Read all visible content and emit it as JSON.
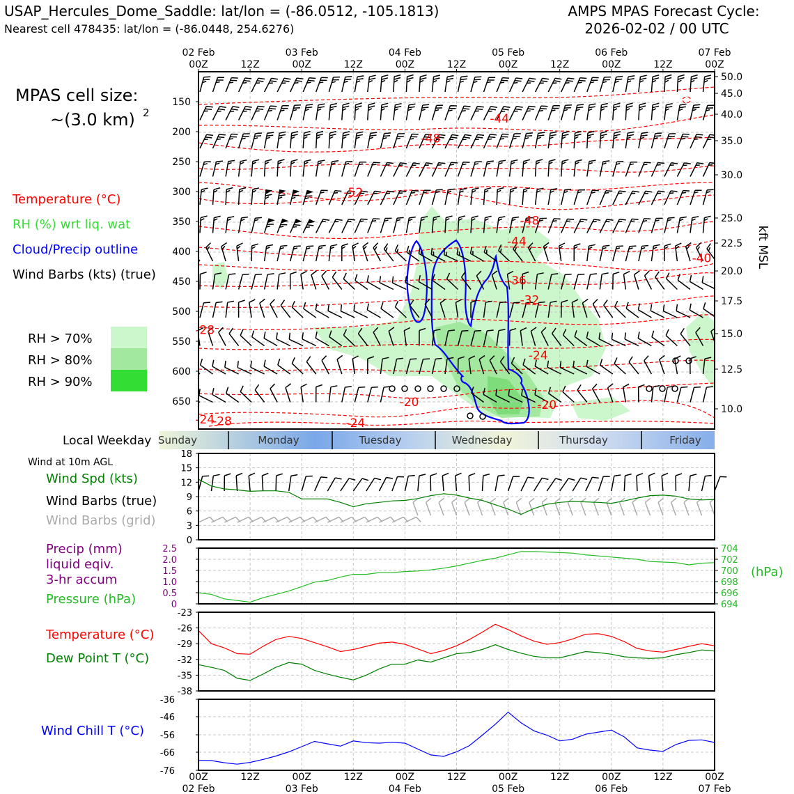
{
  "header": {
    "title_left": "USAP_Hercules_Dome_Saddle: lat/lon = (-86.0512, -105.1813)",
    "subtitle_left": "Nearest cell 478435: lat/lon = (-86.0448, 254.6276)",
    "title_right_1": "AMPS MPAS Forecast Cycle:",
    "title_right_2": "2026-02-02 / 00 UTC"
  },
  "cell_size": {
    "line1": "MPAS cell size:",
    "line2": "~(3.0 km)",
    "sup": "2"
  },
  "legend_upper": {
    "temperature": "Temperature (°C)",
    "rh": "RH (%) wrt liq. wat",
    "cloud": "Cloud/Precip outline",
    "wind": "Wind Barbs (kts) (true)",
    "rh70": "RH > 70%",
    "rh80": "RH > 80%",
    "rh90": "RH > 90%"
  },
  "colors": {
    "temperature": "#ff0000",
    "rh_text": "#33dd33",
    "cloud": "#0000ff",
    "rh70": "#ccf7cc",
    "rh80": "#a3e89f",
    "rh90": "#33dd33",
    "wind_speed": "#008000",
    "pressure": "#22bb22",
    "dewpoint": "#008000",
    "precip": "#800080",
    "windchill": "#0000ff",
    "grid_barb": "#aaaaaa"
  },
  "time_axis": {
    "top_dates": [
      "02 Feb",
      "",
      "03 Feb",
      "",
      "04 Feb",
      "",
      "05 Feb",
      "",
      "06 Feb",
      "",
      "07 Feb"
    ],
    "top_hours": [
      "00Z",
      "12Z",
      "00Z",
      "12Z",
      "00Z",
      "12Z",
      "00Z",
      "12Z",
      "00Z",
      "12Z",
      "00Z"
    ],
    "bottom_hours": [
      "00Z",
      "12Z",
      "00Z",
      "12Z",
      "00Z",
      "12Z",
      "00Z",
      "12Z",
      "00Z",
      "12Z",
      "00Z"
    ],
    "bottom_dates": [
      "02 Feb",
      "",
      "03 Feb",
      "",
      "04 Feb",
      "",
      "05 Feb",
      "",
      "06 Feb",
      "",
      "07 Feb"
    ]
  },
  "weekday_bar": {
    "label": "Local Weekday",
    "days": [
      "Sunday",
      "Monday",
      "Tuesday",
      "Wednesday",
      "Thursday",
      "Friday"
    ]
  },
  "legend_lower": {
    "wind_at": "Wind at 10m AGL",
    "wind_speed": "Wind Spd (kts)",
    "barbs_true": "Wind Barbs (true)",
    "barbs_grid": "Wind Barbs (grid)",
    "precip_1": "Precip (mm)",
    "precip_2": "liquid eqiv.",
    "precip_3": "3-hr accum",
    "pressure": "Pressure (hPa)",
    "pressure_unit": "(hPa)",
    "temperature": "Temperature (°C)",
    "dewpoint": "Dew Point T (°C)",
    "windchill": "Wind Chill T (°C)"
  },
  "chart_data": [
    {
      "type": "line",
      "panel": "time-height cross section",
      "x_range_hours": [
        0,
        120
      ],
      "pressure_ticks_hpa": [
        150,
        200,
        250,
        300,
        350,
        400,
        450,
        500,
        550,
        600,
        650
      ],
      "height_ticks_kft": [
        "50.0",
        "45.0",
        "40.0",
        "35.0",
        "30.0",
        "25.0",
        "22.5",
        "20.0",
        "17.5",
        "15.0",
        "12.5",
        "10.0"
      ],
      "height_axis_label": "kft MSL",
      "temperature_contour_labels": [
        {
          "label": "-44",
          "hour": 70,
          "hpa": 185
        },
        {
          "label": "-48",
          "hour": 54,
          "hpa": 218
        },
        {
          "label": "-52",
          "hour": 36,
          "hpa": 308
        },
        {
          "label": "-48",
          "hour": 77,
          "hpa": 355
        },
        {
          "label": "-44",
          "hour": 74,
          "hpa": 390
        },
        {
          "label": "-40",
          "hour": 117,
          "hpa": 418
        },
        {
          "label": "-36",
          "hour": 74,
          "hpa": 455
        },
        {
          "label": "-32",
          "hour": 77,
          "hpa": 488
        },
        {
          "label": "-28",
          "hour": 1.5,
          "hpa": 538
        },
        {
          "label": "-24",
          "hour": 79,
          "hpa": 580
        },
        {
          "label": "-20",
          "hour": 49,
          "hpa": 658
        },
        {
          "label": "-20",
          "hour": 81,
          "hpa": 663
        },
        {
          "label": "-24",
          "hour": 1.5,
          "hpa": 687
        },
        {
          "label": "-28",
          "hour": 5.5,
          "hpa": 690
        },
        {
          "label": "-24",
          "hour": 36.5,
          "hpa": 693
        }
      ]
    },
    {
      "type": "line",
      "panel": "10m wind speed",
      "ylim": [
        0,
        18
      ],
      "yticks": [
        0,
        3,
        6,
        9,
        12,
        15,
        18
      ],
      "series": [
        {
          "name": "Wind Spd (kts)",
          "x": [
            0,
            3,
            6,
            9,
            12,
            15,
            18,
            21,
            24,
            27,
            30,
            33,
            36,
            39,
            42,
            45,
            48,
            51,
            54,
            57,
            60,
            63,
            66,
            69,
            72,
            75,
            78,
            81,
            84,
            87,
            90,
            93,
            96,
            99,
            102,
            105,
            108,
            111,
            114,
            117,
            120
          ],
          "values": [
            12.6,
            11.2,
            10.6,
            10.4,
            10.1,
            10.2,
            10.2,
            9.9,
            8.5,
            8.5,
            8.5,
            7.8,
            6.9,
            7.5,
            7.8,
            8.1,
            8.2,
            8.6,
            9.2,
            9.6,
            9.3,
            8.7,
            8.2,
            7.3,
            6.4,
            5.3,
            6.5,
            7.4,
            7.8,
            8.0,
            7.9,
            7.8,
            7.6,
            8.1,
            8.7,
            9.2,
            9.3,
            9.1,
            8.5,
            8.3,
            8.4
          ]
        }
      ]
    },
    {
      "type": "line",
      "panel": "precip and pressure",
      "precip_ticks_mm": [
        "0",
        "0.5",
        "1.0",
        "1.5",
        "2.0",
        "2.5"
      ],
      "pressure_ticks_hpa": [
        694,
        696,
        698,
        700,
        702,
        704
      ],
      "series": [
        {
          "name": "Pressure (hPa)",
          "x": [
            0,
            3,
            6,
            9,
            12,
            15,
            18,
            21,
            24,
            27,
            30,
            33,
            36,
            39,
            42,
            45,
            48,
            51,
            54,
            57,
            60,
            63,
            66,
            69,
            72,
            75,
            78,
            81,
            84,
            87,
            90,
            93,
            96,
            99,
            102,
            105,
            108,
            111,
            114,
            117,
            120
          ],
          "values": [
            696.0,
            695.7,
            694.9,
            694.6,
            694.3,
            695.1,
            695.7,
            696.3,
            697.1,
            697.9,
            698.2,
            698.8,
            699.3,
            699.3,
            699.6,
            699.6,
            699.8,
            699.9,
            700.1,
            700.4,
            700.8,
            701.3,
            701.8,
            702.2,
            702.8,
            703.4,
            703.4,
            703.3,
            703.2,
            703.1,
            702.8,
            702.6,
            702.4,
            702.2,
            702.0,
            701.6,
            701.5,
            701.4,
            701.0,
            701.3,
            701.4
          ]
        }
      ]
    },
    {
      "type": "line",
      "panel": "temperature and dew point",
      "ylim": [
        -38,
        -23
      ],
      "yticks": [
        -38,
        -35,
        -32,
        -29,
        -26,
        -23
      ],
      "series": [
        {
          "name": "Temperature (°C)",
          "x": [
            0,
            3,
            6,
            9,
            12,
            15,
            18,
            21,
            24,
            27,
            30,
            33,
            36,
            39,
            42,
            45,
            48,
            51,
            54,
            57,
            60,
            63,
            66,
            69,
            72,
            75,
            78,
            81,
            84,
            87,
            90,
            93,
            96,
            99,
            102,
            105,
            108,
            111,
            114,
            117,
            120
          ],
          "values": [
            -26.5,
            -29,
            -29.8,
            -30.9,
            -31,
            -29.5,
            -28.2,
            -27.6,
            -28,
            -28.8,
            -29.6,
            -30.5,
            -30.1,
            -29.5,
            -28.9,
            -28.7,
            -29.1,
            -30,
            -30.9,
            -30.3,
            -29.4,
            -28.2,
            -26.8,
            -25.3,
            -26.3,
            -27.5,
            -28.5,
            -29.1,
            -28.8,
            -28.1,
            -27.2,
            -27.1,
            -27.6,
            -28.6,
            -29.9,
            -30.4,
            -30.6,
            -30.1,
            -29.5,
            -29,
            -29.4
          ]
        },
        {
          "name": "Dew Point T (°C)",
          "x": [
            0,
            3,
            6,
            9,
            12,
            15,
            18,
            21,
            24,
            27,
            30,
            33,
            36,
            39,
            42,
            45,
            48,
            51,
            54,
            57,
            60,
            63,
            66,
            69,
            72,
            75,
            78,
            81,
            84,
            87,
            90,
            93,
            96,
            99,
            102,
            105,
            108,
            111,
            114,
            117,
            120
          ],
          "values": [
            -33,
            -33.5,
            -34.1,
            -35.6,
            -36,
            -34.8,
            -33.5,
            -32.6,
            -32.9,
            -34.1,
            -34.8,
            -35.4,
            -35.9,
            -35,
            -33.8,
            -32.9,
            -32.9,
            -32.1,
            -32.5,
            -31.7,
            -30.9,
            -30.7,
            -30.1,
            -29.2,
            -30.1,
            -30.8,
            -31.4,
            -31.7,
            -31.7,
            -31.1,
            -30.5,
            -30.7,
            -31,
            -31.5,
            -31.7,
            -31.8,
            -31.7,
            -31.1,
            -30.7,
            -30.2,
            -30.4
          ]
        }
      ]
    },
    {
      "type": "line",
      "panel": "wind chill",
      "yticks": [
        "-76",
        "-66",
        "-56",
        "-46",
        "-36"
      ],
      "series": [
        {
          "name": "Wind Chill T (°C)",
          "x": [
            0,
            3,
            6,
            9,
            12,
            15,
            18,
            21,
            24,
            27,
            30,
            33,
            36,
            39,
            42,
            45,
            48,
            51,
            54,
            57,
            60,
            63,
            66,
            69,
            72,
            75,
            78,
            81,
            84,
            87,
            90,
            93,
            96,
            99,
            102,
            105,
            108,
            111,
            114,
            117,
            120
          ],
          "values": [
            -70.5,
            -70.6,
            -71.8,
            -72.6,
            -71.6,
            -70,
            -68.1,
            -65.8,
            -62.8,
            -59.8,
            -61.2,
            -62.5,
            -59.5,
            -60.5,
            -60.8,
            -60.3,
            -60.8,
            -64.2,
            -67.5,
            -68.3,
            -65.8,
            -62.2,
            -56.2,
            -50.2,
            -43.4,
            -49.4,
            -53.8,
            -56.2,
            -59.5,
            -58.5,
            -55.7,
            -54.5,
            -53.4,
            -57.2,
            -63.5,
            -64.8,
            -65.5,
            -61.6,
            -59.2,
            -58.9,
            -60.4
          ]
        }
      ]
    }
  ]
}
